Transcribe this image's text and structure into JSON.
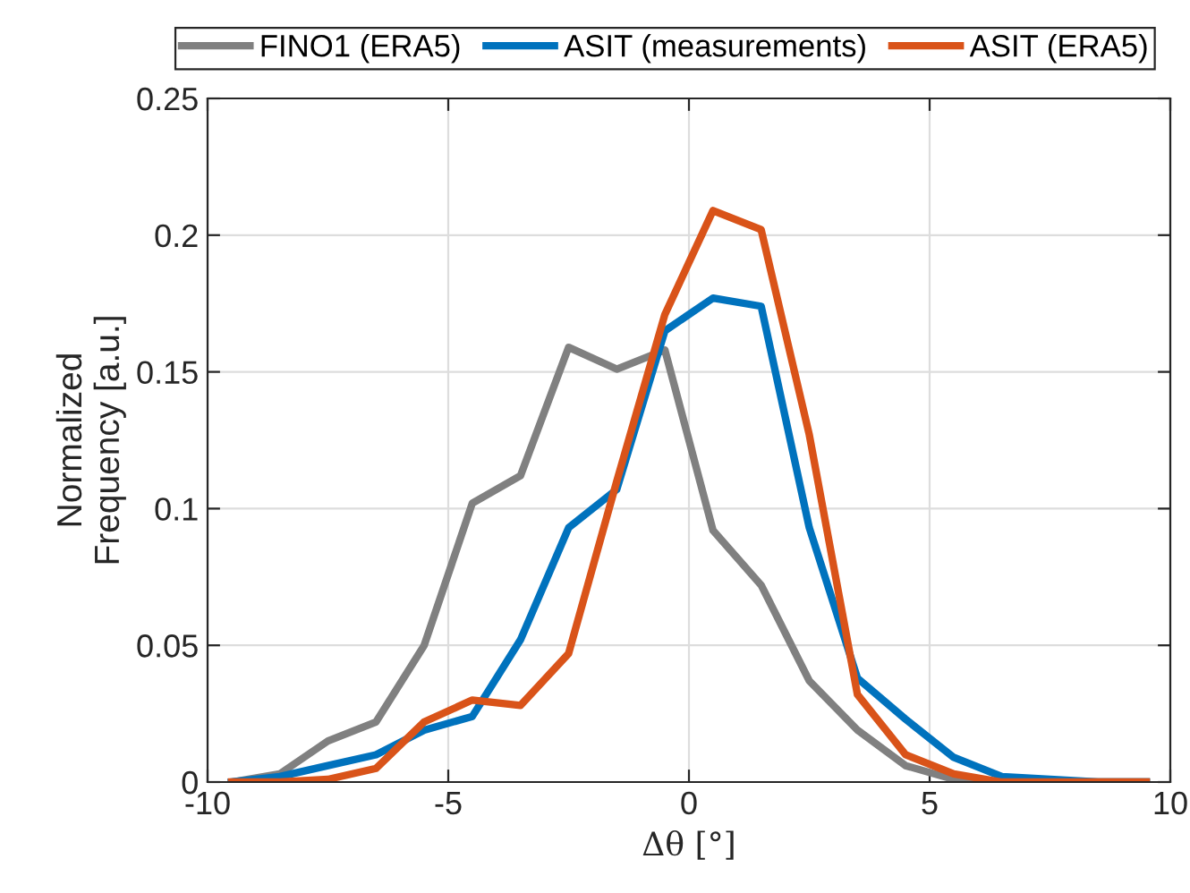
{
  "chart_data": {
    "type": "line",
    "xlabel": "Δθ [°]",
    "ylabel": "Normalized\nFrequency [a.u.]",
    "x": [
      -9.5,
      -8.5,
      -7.5,
      -6.5,
      -5.5,
      -4.5,
      -3.5,
      -2.5,
      -1.5,
      -0.5,
      0.5,
      1.5,
      2.5,
      3.5,
      4.5,
      5.5,
      6.5,
      7.5,
      8.5,
      9.5
    ],
    "series": [
      {
        "name": "FINO1 (ERA5)",
        "color": "#808080",
        "values": [
          0,
          0.003,
          0.015,
          0.022,
          0.05,
          0.102,
          0.112,
          0.159,
          0.151,
          0.158,
          0.092,
          0.072,
          0.037,
          0.019,
          0.006,
          0.001,
          0,
          0,
          0,
          0
        ]
      },
      {
        "name": "ASIT (measurements)",
        "color": "#0072bd",
        "values": [
          0,
          0.002,
          0.006,
          0.01,
          0.019,
          0.024,
          0.052,
          0.093,
          0.107,
          0.165,
          0.177,
          0.174,
          0.093,
          0.038,
          0.023,
          0.009,
          0.002,
          0.001,
          0,
          0
        ]
      },
      {
        "name": "ASIT (ERA5)",
        "color": "#d95319",
        "values": [
          0,
          0,
          0.001,
          0.005,
          0.022,
          0.03,
          0.028,
          0.047,
          0.11,
          0.171,
          0.209,
          0.202,
          0.127,
          0.032,
          0.01,
          0.003,
          0,
          0,
          0,
          0
        ]
      }
    ],
    "xlim": [
      -10,
      10
    ],
    "xticks": [
      -10,
      -5,
      0,
      5,
      10
    ],
    "ylim": [
      0,
      0.25
    ],
    "yticks": [
      0,
      0.05,
      0.1,
      0.15,
      0.2,
      0.25
    ],
    "grid": true,
    "legend": "top",
    "marker": "none",
    "line_style": "solid"
  }
}
